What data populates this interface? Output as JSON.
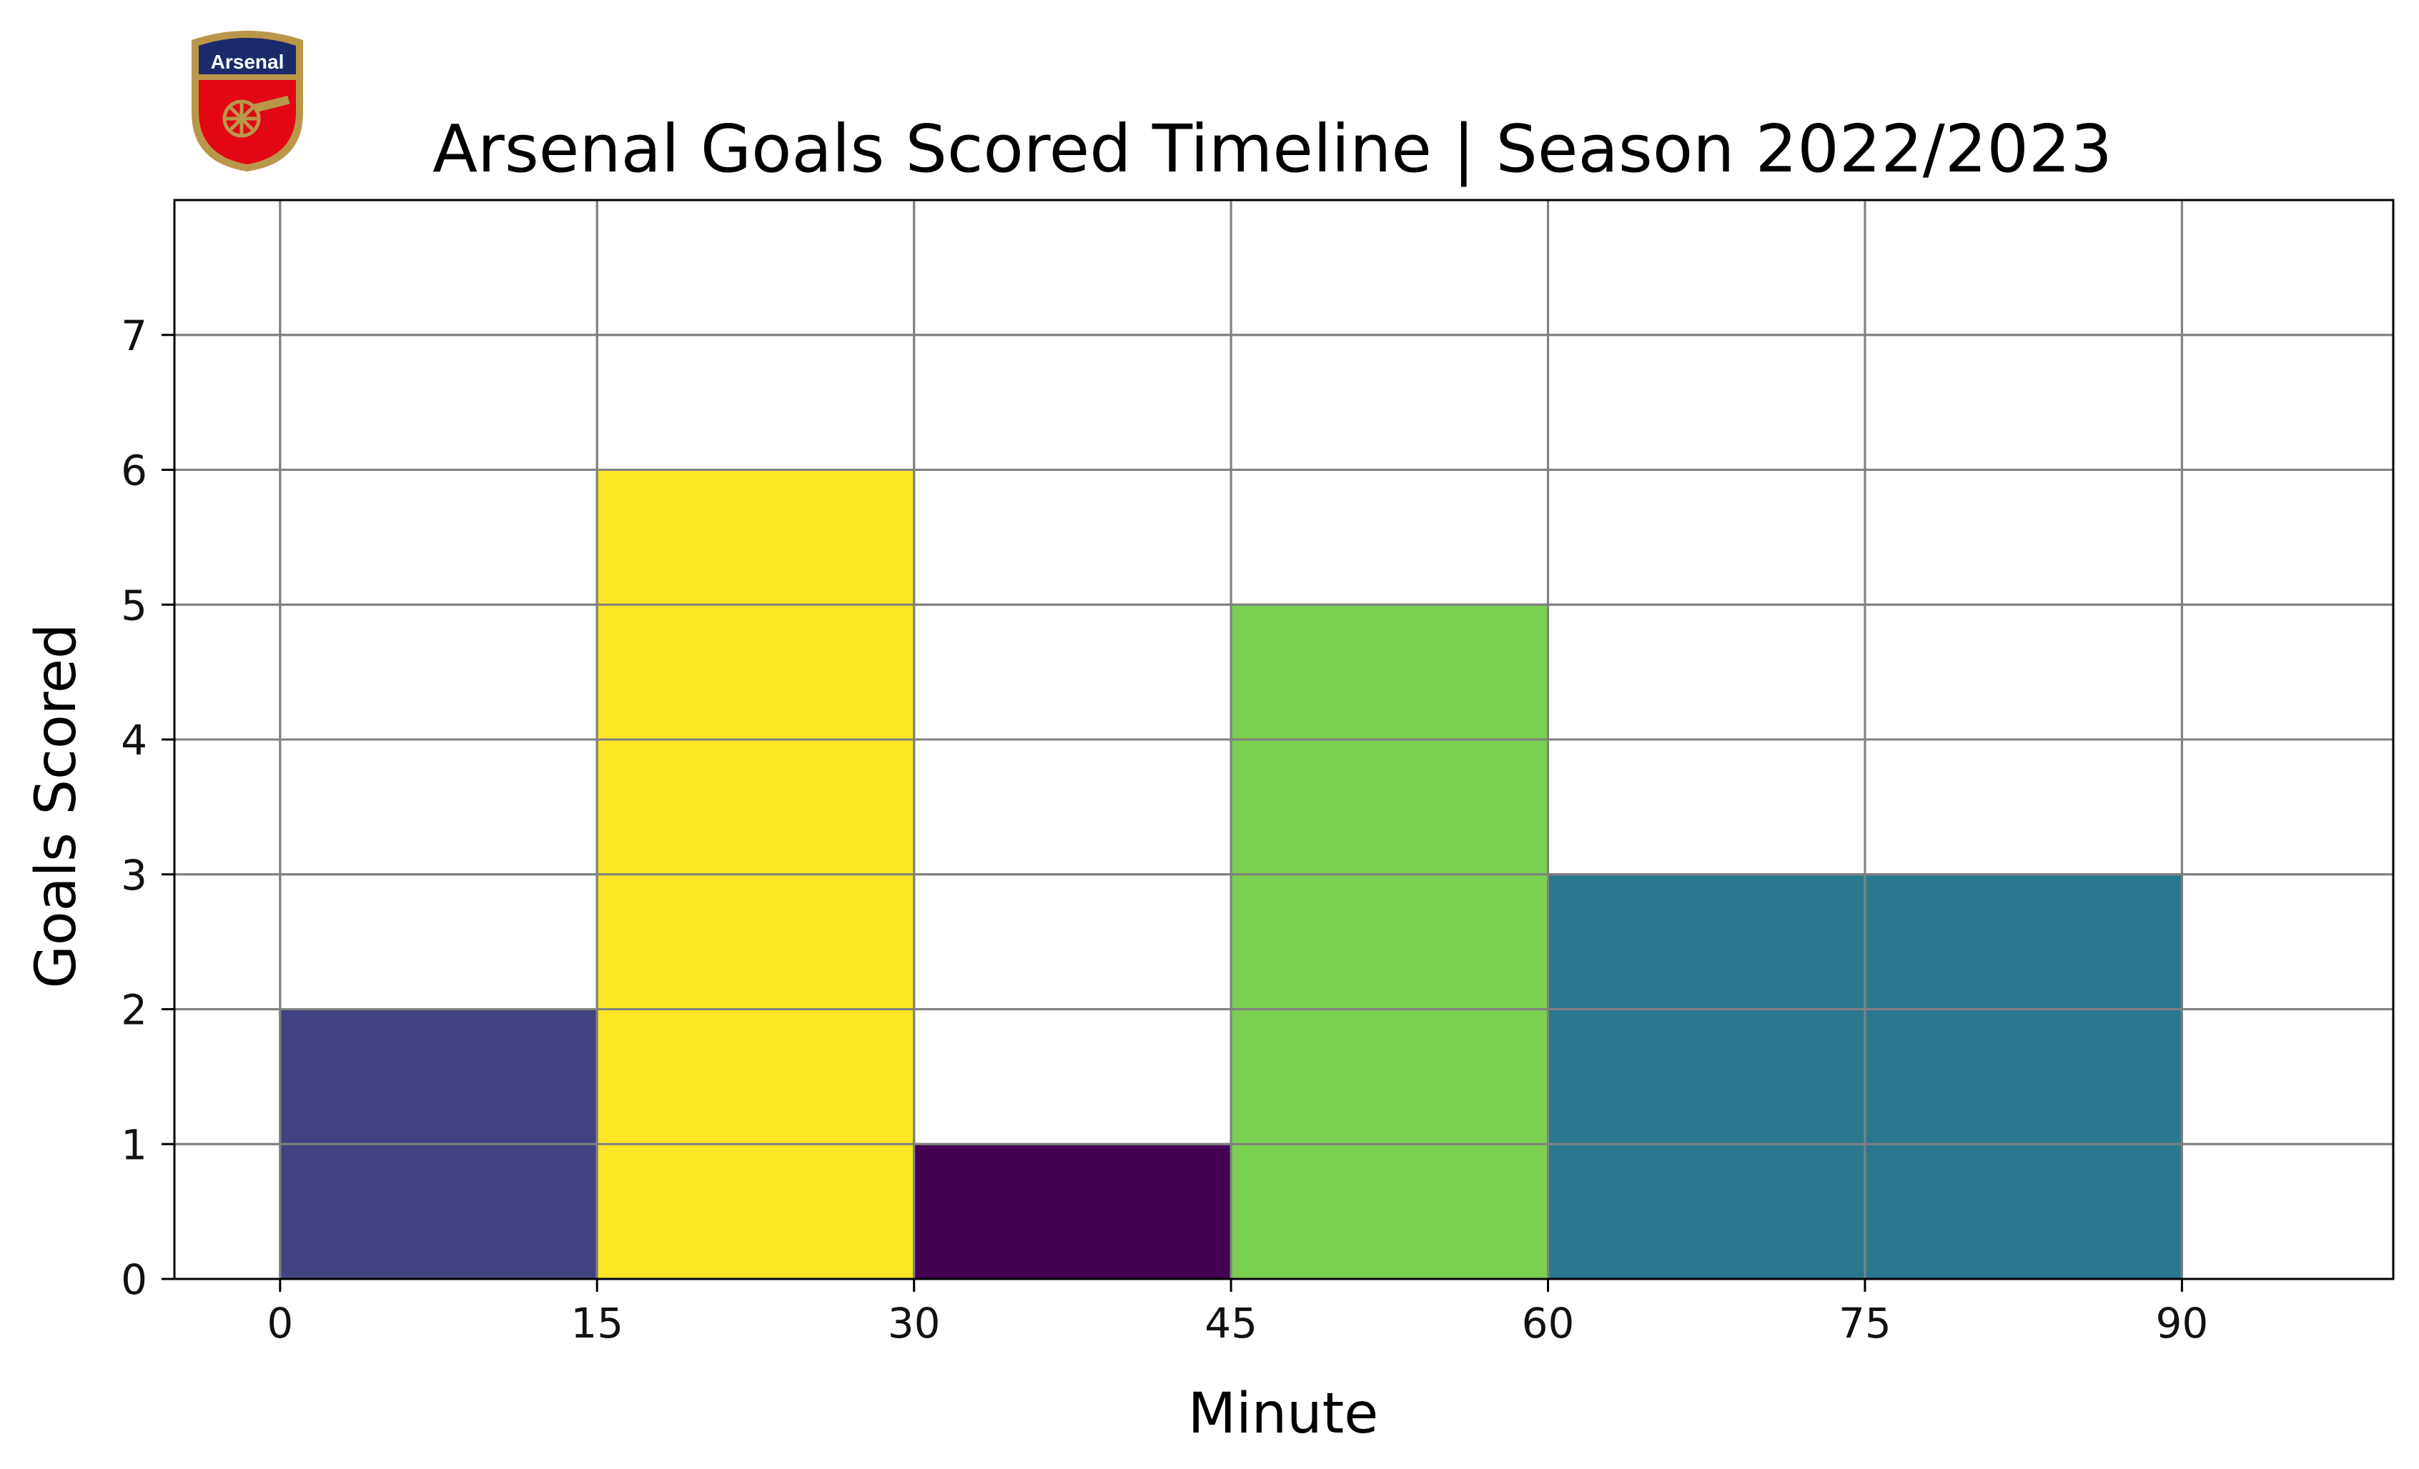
{
  "logo": {
    "text": "Arsenal"
  },
  "chart_data": {
    "type": "bar",
    "title": "Arsenal Goals Scored Timeline | Season 2022/2023",
    "xlabel": "Minute",
    "ylabel": "Goals Scored",
    "bins": [
      {
        "start": 0,
        "end": 15,
        "value": 2,
        "color": "#424283"
      },
      {
        "start": 15,
        "end": 30,
        "value": 6,
        "color": "#fde725"
      },
      {
        "start": 30,
        "end": 45,
        "value": 1,
        "color": "#440154"
      },
      {
        "start": 45,
        "end": 60,
        "value": 5,
        "color": "#7ad151"
      },
      {
        "start": 60,
        "end": 75,
        "value": 3,
        "color": "#2a788e"
      },
      {
        "start": 75,
        "end": 90,
        "value": 3,
        "color": "#2a788e"
      }
    ],
    "xticks": [
      0,
      15,
      30,
      45,
      60,
      75,
      90
    ],
    "yticks": [
      0,
      1,
      2,
      3,
      4,
      5,
      6,
      7
    ],
    "xlim": [
      -5,
      100
    ],
    "ylim": [
      0,
      8
    ],
    "grid": true,
    "grid_color": "#808080",
    "bar_edge_color": "#808080"
  }
}
